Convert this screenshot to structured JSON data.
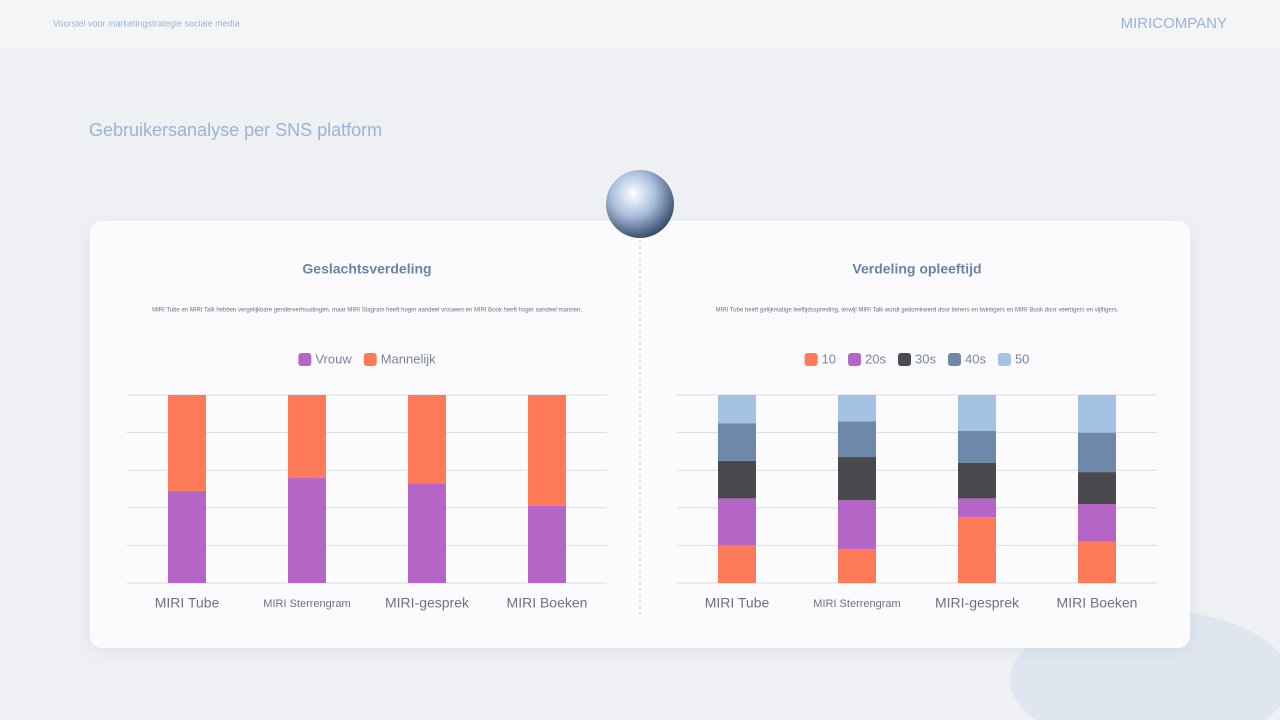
{
  "header": {
    "subtitle": "Voorstel voor marketingstrategie sociale media",
    "brand": "MIRICOMPANY"
  },
  "page_title": "Gebruikersanalyse per SNS platform",
  "chart_data": [
    {
      "type": "stacked_bar",
      "title": "Geslachtsverdeling",
      "subtitle": "MIRI Tube en MIRI Talk hebben vergelijkbare genderverhoudingen, maar MIRI Stagram heeft hoger aandeel vrouwen en MIRI Book heeft hoger aandeel mannen.",
      "categories": [
        "MIRI Tube",
        "MIRI Sterrengram",
        "MIRI-gesprek",
        "MIRI Boeken"
      ],
      "series": [
        {
          "name": "Vrouw",
          "color": "#b565c6",
          "values": [
            49,
            56,
            53,
            41
          ]
        },
        {
          "name": "Mannelijk",
          "color": "#ff7a59",
          "values": [
            51,
            44,
            47,
            59
          ]
        }
      ],
      "ylim": [
        0,
        100
      ],
      "yticks": [
        0,
        20,
        40,
        60,
        80,
        100
      ],
      "grid": true,
      "tick_labels": false,
      "legend": "top"
    },
    {
      "type": "stacked_bar",
      "title": "Verdeling opleeftijd",
      "subtitle": "MIRI Tube heeft gelijkmatige leeftijdsspreiding, terwijl MIRI Talk wordt gedomineerd door tieners en twintigers en MIRI Book door veertigers en vijftigers.",
      "categories": [
        "MIRI Tube",
        "MIRI Sterrengram",
        "MIRI-gesprek",
        "MIRI Boeken"
      ],
      "series": [
        {
          "name": "10",
          "color": "#ff7a59",
          "values": [
            20,
            18,
            35,
            22
          ]
        },
        {
          "name": "20s",
          "color": "#b565c6",
          "values": [
            25,
            26,
            10,
            20
          ]
        },
        {
          "name": "30s",
          "color": "#4a4a4e",
          "values": [
            20,
            23,
            19,
            17
          ]
        },
        {
          "name": "40s",
          "color": "#6d88a8",
          "values": [
            20,
            19,
            17,
            21
          ]
        },
        {
          "name": "50",
          "color": "#a4c2e3",
          "values": [
            15,
            14,
            19,
            20
          ]
        }
      ],
      "ylim": [
        0,
        100
      ],
      "yticks": [
        0,
        20,
        40,
        60,
        80,
        100
      ],
      "grid": true,
      "tick_labels": false,
      "legend": "top"
    }
  ]
}
